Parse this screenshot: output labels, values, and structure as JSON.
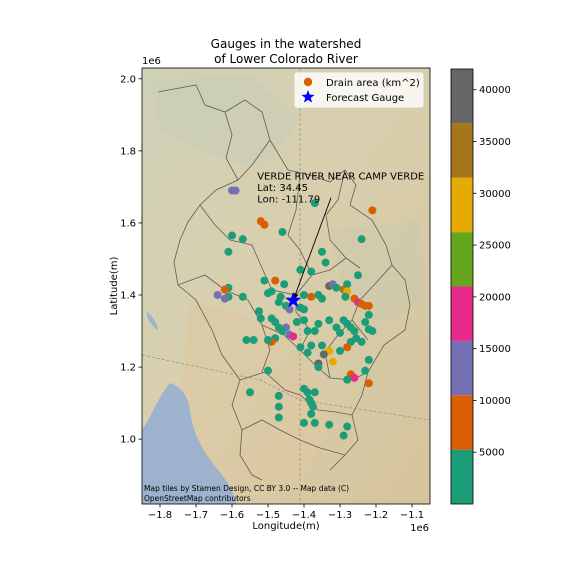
{
  "chart_data": {
    "type": "scatter",
    "title_lines": [
      "Gauges in the watershed",
      "of Lower Colorado River"
    ],
    "xlabel": "Longitude(m)",
    "ylabel": "Latitude(m)",
    "x_offset_label": "1e6",
    "y_offset_label": "1e6",
    "xlim": [
      -1.85,
      -1.05
    ],
    "ylim": [
      0.82,
      2.03
    ],
    "xticks": [
      -1.8,
      -1.7,
      -1.6,
      -1.5,
      -1.4,
      -1.3,
      -1.2,
      -1.1
    ],
    "xtick_labels": [
      "−1.8",
      "−1.7",
      "−1.6",
      "−1.5",
      "−1.4",
      "−1.3",
      "−1.2",
      "−1.1"
    ],
    "yticks": [
      1.0,
      1.2,
      1.4,
      1.6,
      1.8,
      2.0
    ],
    "ytick_labels": [
      "1.0",
      "1.2",
      "1.4",
      "1.6",
      "1.8",
      "2.0"
    ],
    "legend": {
      "placement": "top-right",
      "entries": [
        {
          "label": "Drain area (km^2)",
          "marker": "circle",
          "color": "#d95f02"
        },
        {
          "label": "Forecast Gauge",
          "marker": "star",
          "color": "#0000ff"
        }
      ]
    },
    "annotation": {
      "lines": [
        "VERDE RIVER NEAR CAMP VERDE",
        "Lat: 34.45",
        "Lon: -111.79"
      ],
      "text_at": [
        -1.53,
        1.72
      ],
      "arrow_from": [
        -1.325,
        1.67
      ],
      "arrow_to": [
        -1.43,
        1.385
      ]
    },
    "forecast_gauge": {
      "x": -1.43,
      "y": 1.385
    },
    "colorbar": {
      "range": [
        0,
        42000
      ],
      "ticks": [
        5000,
        10000,
        15000,
        20000,
        25000,
        30000,
        35000,
        40000
      ],
      "tick_labels": [
        "5000",
        "10000",
        "15000",
        "20000",
        "25000",
        "30000",
        "35000",
        "40000"
      ],
      "bins": [
        {
          "from": 0,
          "to": 5250,
          "color": "#1b9e77"
        },
        {
          "from": 5250,
          "to": 10500,
          "color": "#d95f02"
        },
        {
          "from": 10500,
          "to": 15750,
          "color": "#7570b3"
        },
        {
          "from": 15750,
          "to": 21000,
          "color": "#e7298a"
        },
        {
          "from": 21000,
          "to": 26250,
          "color": "#66a61e"
        },
        {
          "from": 26250,
          "to": 31500,
          "color": "#e6ab02"
        },
        {
          "from": 31500,
          "to": 36750,
          "color": "#a6761d"
        },
        {
          "from": 36750,
          "to": 42000,
          "color": "#666666"
        }
      ]
    },
    "points": [
      {
        "x": -1.6,
        "y": 1.69,
        "v": 12000
      },
      {
        "x": -1.59,
        "y": 1.69,
        "v": 12000
      },
      {
        "x": -1.52,
        "y": 1.605,
        "v": 8000
      },
      {
        "x": -1.51,
        "y": 1.595,
        "v": 8000
      },
      {
        "x": -1.21,
        "y": 1.635,
        "v": 8000
      },
      {
        "x": -1.37,
        "y": 1.655,
        "v": 2000
      },
      {
        "x": -1.6,
        "y": 1.565,
        "v": 2000
      },
      {
        "x": -1.57,
        "y": 1.555,
        "v": 2000
      },
      {
        "x": -1.61,
        "y": 1.52,
        "v": 2000
      },
      {
        "x": -1.46,
        "y": 1.575,
        "v": 2000
      },
      {
        "x": -1.24,
        "y": 1.555,
        "v": 2000
      },
      {
        "x": -1.35,
        "y": 1.52,
        "v": 2000
      },
      {
        "x": -1.34,
        "y": 1.49,
        "v": 2000
      },
      {
        "x": -1.38,
        "y": 1.465,
        "v": 2000
      },
      {
        "x": -1.41,
        "y": 1.47,
        "v": 2000
      },
      {
        "x": -1.25,
        "y": 1.455,
        "v": 2000
      },
      {
        "x": -1.28,
        "y": 1.43,
        "v": 2000
      },
      {
        "x": -1.61,
        "y": 1.42,
        "v": 2000
      },
      {
        "x": -1.62,
        "y": 1.415,
        "v": 8000
      },
      {
        "x": -1.57,
        "y": 1.395,
        "v": 2000
      },
      {
        "x": -1.61,
        "y": 1.395,
        "v": 2000
      },
      {
        "x": -1.64,
        "y": 1.4,
        "v": 12000
      },
      {
        "x": -1.62,
        "y": 1.39,
        "v": 12000
      },
      {
        "x": -1.51,
        "y": 1.44,
        "v": 2000
      },
      {
        "x": -1.48,
        "y": 1.44,
        "v": 8000
      },
      {
        "x": -1.455,
        "y": 1.43,
        "v": 2000
      },
      {
        "x": -1.49,
        "y": 1.41,
        "v": 2000
      },
      {
        "x": -1.5,
        "y": 1.405,
        "v": 2000
      },
      {
        "x": -1.465,
        "y": 1.395,
        "v": 2000
      },
      {
        "x": -1.47,
        "y": 1.38,
        "v": 2000
      },
      {
        "x": -1.45,
        "y": 1.37,
        "v": 2000
      },
      {
        "x": -1.44,
        "y": 1.36,
        "v": 12000
      },
      {
        "x": -1.41,
        "y": 1.365,
        "v": 2000
      },
      {
        "x": -1.4,
        "y": 1.4,
        "v": 2000
      },
      {
        "x": -1.38,
        "y": 1.395,
        "v": 8000
      },
      {
        "x": -1.36,
        "y": 1.4,
        "v": 2000
      },
      {
        "x": -1.35,
        "y": 1.39,
        "v": 2000
      },
      {
        "x": -1.33,
        "y": 1.425,
        "v": 38000
      },
      {
        "x": -1.32,
        "y": 1.43,
        "v": 12000
      },
      {
        "x": -1.31,
        "y": 1.42,
        "v": 2000
      },
      {
        "x": -1.29,
        "y": 1.415,
        "v": 33000
      },
      {
        "x": -1.28,
        "y": 1.41,
        "v": 28000
      },
      {
        "x": -1.285,
        "y": 1.395,
        "v": 2000
      },
      {
        "x": -1.26,
        "y": 1.39,
        "v": 8000
      },
      {
        "x": -1.25,
        "y": 1.38,
        "v": 18000
      },
      {
        "x": -1.24,
        "y": 1.375,
        "v": 8000
      },
      {
        "x": -1.23,
        "y": 1.37,
        "v": 8000
      },
      {
        "x": -1.22,
        "y": 1.37,
        "v": 8000
      },
      {
        "x": -1.22,
        "y": 1.345,
        "v": 2000
      },
      {
        "x": -1.23,
        "y": 1.325,
        "v": 2000
      },
      {
        "x": -1.22,
        "y": 1.305,
        "v": 2000
      },
      {
        "x": -1.21,
        "y": 1.3,
        "v": 2000
      },
      {
        "x": -1.525,
        "y": 1.355,
        "v": 2000
      },
      {
        "x": -1.52,
        "y": 1.335,
        "v": 2000
      },
      {
        "x": -1.49,
        "y": 1.335,
        "v": 2000
      },
      {
        "x": -1.48,
        "y": 1.325,
        "v": 2000
      },
      {
        "x": -1.47,
        "y": 1.31,
        "v": 2000
      },
      {
        "x": -1.45,
        "y": 1.31,
        "v": 12000
      },
      {
        "x": -1.46,
        "y": 1.3,
        "v": 2000
      },
      {
        "x": -1.44,
        "y": 1.29,
        "v": 12000
      },
      {
        "x": -1.43,
        "y": 1.285,
        "v": 18000
      },
      {
        "x": -1.48,
        "y": 1.28,
        "v": 2000
      },
      {
        "x": -1.49,
        "y": 1.27,
        "v": 8000
      },
      {
        "x": -1.5,
        "y": 1.275,
        "v": 2000
      },
      {
        "x": -1.42,
        "y": 1.325,
        "v": 2000
      },
      {
        "x": -1.4,
        "y": 1.33,
        "v": 2000
      },
      {
        "x": -1.39,
        "y": 1.3,
        "v": 2000
      },
      {
        "x": -1.37,
        "y": 1.3,
        "v": 2000
      },
      {
        "x": -1.36,
        "y": 1.32,
        "v": 2000
      },
      {
        "x": -1.33,
        "y": 1.33,
        "v": 2000
      },
      {
        "x": -1.31,
        "y": 1.31,
        "v": 2000
      },
      {
        "x": -1.3,
        "y": 1.295,
        "v": 2000
      },
      {
        "x": -1.29,
        "y": 1.33,
        "v": 2000
      },
      {
        "x": -1.28,
        "y": 1.32,
        "v": 2000
      },
      {
        "x": -1.27,
        "y": 1.31,
        "v": 2000
      },
      {
        "x": -1.26,
        "y": 1.3,
        "v": 2000
      },
      {
        "x": -1.255,
        "y": 1.28,
        "v": 2000
      },
      {
        "x": -1.27,
        "y": 1.27,
        "v": 2000
      },
      {
        "x": -1.24,
        "y": 1.27,
        "v": 2000
      },
      {
        "x": -1.28,
        "y": 1.255,
        "v": 8000
      },
      {
        "x": -1.3,
        "y": 1.245,
        "v": 2000
      },
      {
        "x": -1.35,
        "y": 1.26,
        "v": 2000
      },
      {
        "x": -1.33,
        "y": 1.245,
        "v": 28000
      },
      {
        "x": -1.345,
        "y": 1.235,
        "v": 38000
      },
      {
        "x": -1.36,
        "y": 1.21,
        "v": 38000
      },
      {
        "x": -1.39,
        "y": 1.24,
        "v": 2000
      },
      {
        "x": -1.38,
        "y": 1.26,
        "v": 2000
      },
      {
        "x": -1.41,
        "y": 1.255,
        "v": 2000
      },
      {
        "x": -1.56,
        "y": 1.275,
        "v": 2000
      },
      {
        "x": -1.54,
        "y": 1.275,
        "v": 2000
      },
      {
        "x": -1.5,
        "y": 1.19,
        "v": 2000
      },
      {
        "x": -1.55,
        "y": 1.13,
        "v": 2000
      },
      {
        "x": -1.22,
        "y": 1.22,
        "v": 2000
      },
      {
        "x": -1.27,
        "y": 1.18,
        "v": 8000
      },
      {
        "x": -1.26,
        "y": 1.17,
        "v": 18000
      },
      {
        "x": -1.28,
        "y": 1.165,
        "v": 2000
      },
      {
        "x": -1.22,
        "y": 1.155,
        "v": 8000
      },
      {
        "x": -1.23,
        "y": 1.19,
        "v": 2000
      },
      {
        "x": -1.47,
        "y": 1.12,
        "v": 2000
      },
      {
        "x": -1.47,
        "y": 1.09,
        "v": 2000
      },
      {
        "x": -1.47,
        "y": 1.06,
        "v": 2000
      },
      {
        "x": -1.4,
        "y": 1.14,
        "v": 2000
      },
      {
        "x": -1.39,
        "y": 1.13,
        "v": 2000
      },
      {
        "x": -1.37,
        "y": 1.13,
        "v": 2000
      },
      {
        "x": -1.385,
        "y": 1.11,
        "v": 2000
      },
      {
        "x": -1.38,
        "y": 1.1,
        "v": 2000
      },
      {
        "x": -1.375,
        "y": 1.09,
        "v": 2000
      },
      {
        "x": -1.38,
        "y": 1.07,
        "v": 2000
      },
      {
        "x": -1.4,
        "y": 1.045,
        "v": 2000
      },
      {
        "x": -1.37,
        "y": 1.045,
        "v": 2000
      },
      {
        "x": -1.33,
        "y": 1.04,
        "v": 2000
      },
      {
        "x": -1.28,
        "y": 1.035,
        "v": 2000
      },
      {
        "x": -1.29,
        "y": 1.01,
        "v": 2000
      },
      {
        "x": -1.36,
        "y": 1.2,
        "v": 2000
      },
      {
        "x": -1.32,
        "y": 1.215,
        "v": 28000
      },
      {
        "x": -1.4,
        "y": 1.36,
        "v": 2000
      }
    ]
  },
  "attribution": [
    "Map tiles by Stamen Design, CC BY 3.0 -- Map data (C)",
    "OpenStreetMap contributors"
  ],
  "colors": {
    "map_land": "#d8ccab",
    "map_lake": "#9db2cd",
    "boundary": "#4a4a4a",
    "arrow": "#000000"
  }
}
